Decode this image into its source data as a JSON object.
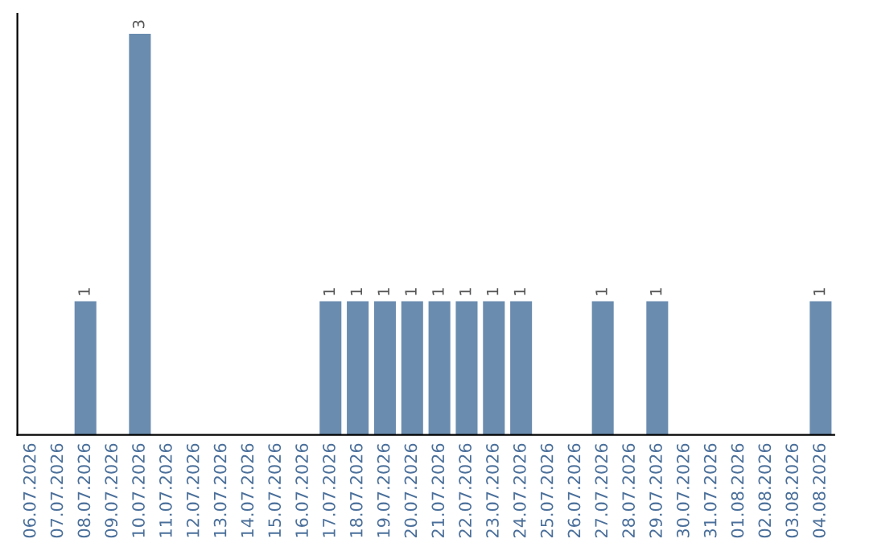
{
  "chart_data": {
    "type": "bar",
    "categories": [
      "06.07.2026",
      "07.07.2026",
      "08.07.2026",
      "09.07.2026",
      "10.07.2026",
      "11.07.2026",
      "12.07.2026",
      "13.07.2026",
      "14.07.2026",
      "15.07.2026",
      "16.07.2026",
      "17.07.2026",
      "18.07.2026",
      "19.07.2026",
      "20.07.2026",
      "21.07.2026",
      "22.07.2026",
      "23.07.2026",
      "24.07.2026",
      "25.07.2026",
      "26.07.2026",
      "27.07.2026",
      "28.07.2026",
      "29.07.2026",
      "30.07.2026",
      "31.07.2026",
      "01.08.2026",
      "02.08.2026",
      "03.08.2026",
      "04.08.2026"
    ],
    "values": [
      0,
      0,
      1,
      0,
      3,
      0,
      0,
      0,
      0,
      0,
      0,
      1,
      1,
      1,
      1,
      1,
      1,
      1,
      1,
      0,
      0,
      1,
      0,
      1,
      0,
      0,
      0,
      0,
      0,
      1
    ],
    "value_labels": [
      null,
      null,
      "1",
      null,
      "3",
      null,
      null,
      null,
      null,
      null,
      null,
      "1",
      "1",
      "1",
      "1",
      "1",
      "1",
      "1",
      "1",
      null,
      null,
      "1",
      null,
      "1",
      null,
      null,
      null,
      null,
      null,
      "1"
    ],
    "color": "#6a8caf",
    "ylim": [
      0,
      3.15
    ],
    "tick_labels": "x",
    "grid": false,
    "legend": false
  }
}
